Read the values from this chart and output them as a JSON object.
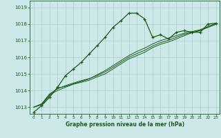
{
  "title": "Graphe pression niveau de la mer (hPa)",
  "background_color": "#cce8e8",
  "grid_color": "#aacccc",
  "line_color": "#1a5c1a",
  "xlim": [
    -0.5,
    23.5
  ],
  "ylim": [
    1012.6,
    1019.4
  ],
  "yticks": [
    1013,
    1014,
    1015,
    1016,
    1017,
    1018,
    1019
  ],
  "xticks": [
    0,
    1,
    2,
    3,
    4,
    5,
    6,
    7,
    8,
    9,
    10,
    11,
    12,
    13,
    14,
    15,
    16,
    17,
    18,
    19,
    20,
    21,
    22,
    23
  ],
  "series1_x": [
    0,
    1,
    2,
    3,
    4,
    5,
    6,
    7,
    8,
    9,
    10,
    11,
    12,
    13,
    14,
    15,
    16,
    17,
    18,
    19,
    20,
    21,
    22,
    23
  ],
  "series1_y": [
    1012.7,
    1013.1,
    1013.6,
    1014.2,
    1014.9,
    1015.3,
    1015.7,
    1016.2,
    1016.7,
    1017.2,
    1017.8,
    1018.2,
    1018.65,
    1018.65,
    1018.3,
    1017.2,
    1017.35,
    1017.1,
    1017.5,
    1017.6,
    1017.5,
    1017.5,
    1018.0,
    1018.05
  ],
  "series2_x": [
    0,
    1,
    2,
    3,
    4,
    5,
    6,
    7,
    8,
    9,
    10,
    11,
    12,
    13,
    14,
    15,
    16,
    17,
    18,
    19,
    20,
    21,
    22,
    23
  ],
  "series2_y": [
    1013.0,
    1013.15,
    1013.7,
    1014.15,
    1014.25,
    1014.4,
    1014.55,
    1014.7,
    1014.95,
    1015.2,
    1015.5,
    1015.8,
    1016.1,
    1016.35,
    1016.55,
    1016.8,
    1017.0,
    1017.15,
    1017.3,
    1017.45,
    1017.55,
    1017.65,
    1017.85,
    1018.05
  ],
  "series3_x": [
    0,
    1,
    2,
    3,
    4,
    5,
    6,
    7,
    8,
    9,
    10,
    11,
    12,
    13,
    14,
    15,
    16,
    17,
    18,
    19,
    20,
    21,
    22,
    23
  ],
  "series3_y": [
    1013.0,
    1013.2,
    1013.8,
    1014.1,
    1014.3,
    1014.45,
    1014.6,
    1014.72,
    1014.9,
    1015.12,
    1015.4,
    1015.7,
    1016.0,
    1016.22,
    1016.42,
    1016.68,
    1016.88,
    1017.02,
    1017.2,
    1017.38,
    1017.5,
    1017.62,
    1017.8,
    1018.0
  ],
  "series4_x": [
    0,
    1,
    2,
    3,
    4,
    5,
    6,
    7,
    8,
    9,
    10,
    11,
    12,
    13,
    14,
    15,
    16,
    17,
    18,
    19,
    20,
    21,
    22,
    23
  ],
  "series4_y": [
    1013.0,
    1013.2,
    1013.75,
    1014.0,
    1014.2,
    1014.38,
    1014.5,
    1014.62,
    1014.82,
    1015.0,
    1015.3,
    1015.6,
    1015.9,
    1016.1,
    1016.3,
    1016.58,
    1016.78,
    1016.92,
    1017.1,
    1017.3,
    1017.48,
    1017.6,
    1017.8,
    1017.98
  ]
}
